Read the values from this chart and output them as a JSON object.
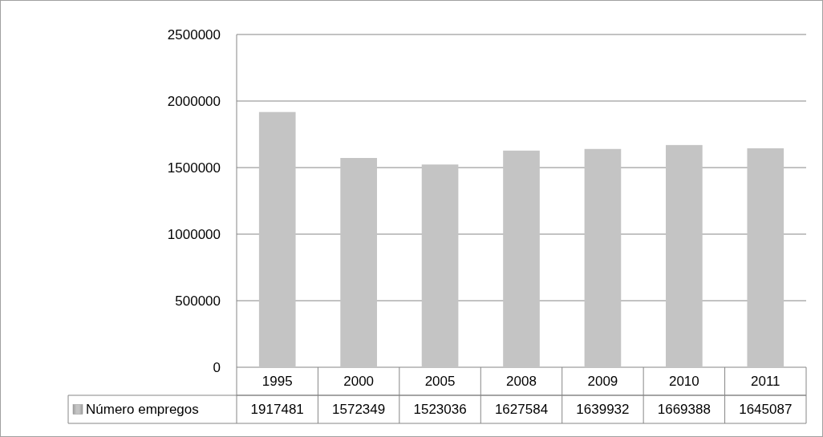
{
  "chart_data": {
    "type": "bar",
    "categories": [
      "1995",
      "2000",
      "2005",
      "2008",
      "2009",
      "2010",
      "2011"
    ],
    "series": [
      {
        "name": "Número empregos",
        "color": "#c4c4c4",
        "values": [
          1917481,
          1572349,
          1523036,
          1627584,
          1639932,
          1669388,
          1645087
        ]
      }
    ],
    "ylim": [
      0,
      2500000
    ],
    "yticks": [
      0,
      500000,
      1000000,
      1500000,
      2000000,
      2500000
    ],
    "grid": "y",
    "data_labels": true,
    "legend": "bottom left"
  }
}
